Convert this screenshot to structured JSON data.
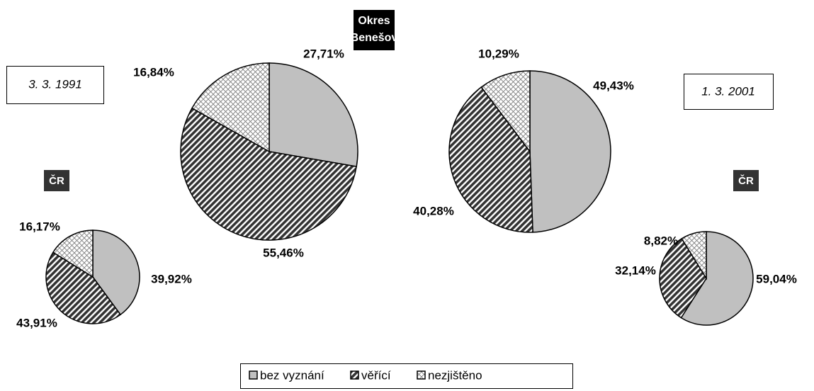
{
  "header": {
    "lines": [
      "Okres",
      "Benešov"
    ]
  },
  "dates": [
    "3. 3. 1991",
    "1. 3. 2001"
  ],
  "chart_data": [
    {
      "type": "pie",
      "categories": [
        "bez vyznání",
        "věřící",
        "nezjištěno"
      ],
      "values": [
        27.71,
        55.46,
        16.84
      ],
      "value_labels": [
        "27,71%",
        "55,46%",
        "16,84%"
      ],
      "colors": [
        "#c0c0c0",
        "url(#diag)",
        "url(#cross)"
      ]
    },
    {
      "type": "pie",
      "categories": [
        "bez vyznání",
        "věřící",
        "nezjištěno"
      ],
      "values": [
        49.43,
        40.28,
        10.29
      ],
      "value_labels": [
        "49,43%",
        "40,28%",
        "10,29%"
      ],
      "colors": [
        "#c0c0c0",
        "url(#diag)",
        "url(#cross)"
      ]
    },
    {
      "type": "pie",
      "title": "ČR",
      "categories": [
        "bez vyznání",
        "věřící",
        "nezjištěno"
      ],
      "values": [
        39.92,
        43.91,
        16.17
      ],
      "value_labels": [
        "39,92%",
        "43,91%",
        "16,17%"
      ],
      "colors": [
        "#c0c0c0",
        "url(#diag)",
        "url(#cross)"
      ]
    },
    {
      "type": "pie",
      "title": "ČR",
      "categories": [
        "bez vyznání",
        "věřící",
        "nezjištěno"
      ],
      "values": [
        59.04,
        32.14,
        8.82
      ],
      "value_labels": [
        "59,04%",
        "32,14%",
        "8,82%"
      ],
      "colors": [
        "#c0c0c0",
        "url(#diag)",
        "url(#cross)"
      ]
    }
  ]
}
